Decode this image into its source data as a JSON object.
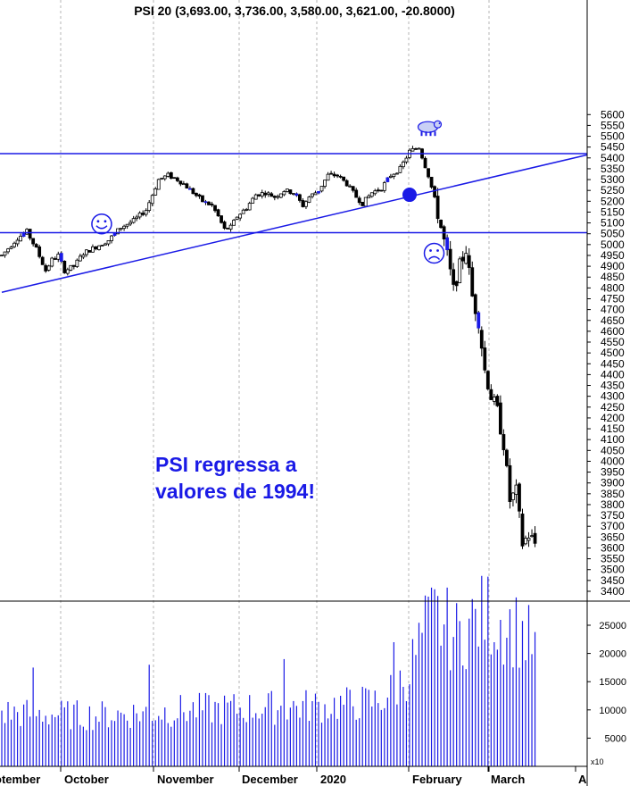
{
  "chart_data": {
    "type": "candlestick",
    "title": "PSI 20 (3,693.00, 3,736.00, 3,580.00, 3,621.00, -20.8000)",
    "price_axis": {
      "min": 3300,
      "max": 5650,
      "ticks": [
        3400,
        3450,
        3500,
        3550,
        3600,
        3650,
        3700,
        3750,
        3800,
        3850,
        3900,
        3950,
        4000,
        4050,
        4100,
        4150,
        4200,
        4250,
        4300,
        4350,
        4400,
        4450,
        4500,
        4550,
        4600,
        4650,
        4700,
        4750,
        4800,
        4850,
        4900,
        4950,
        5000,
        5050,
        5100,
        5150,
        5200,
        5250,
        5300,
        5350,
        5400,
        5450,
        5500,
        5550,
        5600
      ]
    },
    "volume_axis": {
      "min": 0,
      "max": 28000,
      "ticks": [
        5000,
        10000,
        15000,
        20000,
        25000
      ],
      "multiplier_label": "x10"
    },
    "x_labels": [
      "otember",
      "October",
      "November",
      "December",
      "2020",
      "February",
      "March",
      "A"
    ],
    "annotation": {
      "lines": [
        "PSI regressa a",
        "valores de 1994!"
      ]
    },
    "reference_lines": [
      {
        "type": "horizontal",
        "value": 5420
      },
      {
        "type": "horizontal",
        "value": 5055
      },
      {
        "type": "trend",
        "from": {
          "day": 0,
          "value": 4780
        },
        "to": {
          "day": 172,
          "value": 5414
        }
      }
    ],
    "markers": [
      {
        "kind": "smiley-icon",
        "day": 29,
        "value": 5120
      },
      {
        "kind": "frown-icon",
        "day": 135,
        "value": 4985
      },
      {
        "kind": "bear-icon",
        "day": 133,
        "value": 5555
      },
      {
        "kind": "dot",
        "day": 132,
        "value": 5230
      }
    ],
    "price_anchors": [
      [
        0,
        4950
      ],
      [
        5,
        5030
      ],
      [
        8,
        5060
      ],
      [
        11,
        4980
      ],
      [
        14,
        4880
      ],
      [
        16,
        4930
      ],
      [
        18,
        4950
      ],
      [
        20,
        4880
      ],
      [
        23,
        4900
      ],
      [
        26,
        4960
      ],
      [
        30,
        4990
      ],
      [
        34,
        5020
      ],
      [
        38,
        5080
      ],
      [
        42,
        5110
      ],
      [
        46,
        5160
      ],
      [
        48,
        5230
      ],
      [
        50,
        5300
      ],
      [
        53,
        5320
      ],
      [
        56,
        5300
      ],
      [
        58,
        5280
      ],
      [
        61,
        5240
      ],
      [
        64,
        5200
      ],
      [
        67,
        5180
      ],
      [
        69,
        5130
      ],
      [
        71,
        5070
      ],
      [
        73,
        5080
      ],
      [
        75,
        5130
      ],
      [
        78,
        5170
      ],
      [
        81,
        5230
      ],
      [
        84,
        5240
      ],
      [
        87,
        5220
      ],
      [
        90,
        5250
      ],
      [
        93,
        5240
      ],
      [
        96,
        5180
      ],
      [
        98,
        5220
      ],
      [
        101,
        5250
      ],
      [
        104,
        5320
      ],
      [
        107,
        5320
      ],
      [
        110,
        5280
      ],
      [
        113,
        5220
      ],
      [
        115,
        5190
      ],
      [
        118,
        5240
      ],
      [
        121,
        5260
      ],
      [
        124,
        5320
      ],
      [
        127,
        5350
      ],
      [
        130,
        5430
      ],
      [
        133,
        5450
      ],
      [
        136,
        5320
      ],
      [
        138,
        5210
      ],
      [
        140,
        5080
      ],
      [
        142,
        4950
      ],
      [
        144,
        4790
      ],
      [
        146,
        4900
      ],
      [
        148,
        4980
      ],
      [
        150,
        4760
      ],
      [
        152,
        4650
      ],
      [
        154,
        4420
      ],
      [
        156,
        4300
      ],
      [
        158,
        4230
      ],
      [
        160,
        4080
      ],
      [
        162,
        3820
      ],
      [
        164,
        3860
      ],
      [
        166,
        3620
      ],
      [
        168,
        3660
      ],
      [
        170,
        3621
      ]
    ],
    "volume_anchors": [
      [
        0,
        9500
      ],
      [
        30,
        9000
      ],
      [
        60,
        10000
      ],
      [
        90,
        10500
      ],
      [
        110,
        11000
      ],
      [
        120,
        11500
      ],
      [
        126,
        14000
      ],
      [
        130,
        17000
      ],
      [
        132,
        20000
      ],
      [
        135,
        24000
      ],
      [
        138,
        26500
      ],
      [
        141,
        25000
      ],
      [
        145,
        23000
      ],
      [
        150,
        25500
      ],
      [
        155,
        27000
      ],
      [
        160,
        25500
      ],
      [
        165,
        24000
      ],
      [
        170,
        21000
      ]
    ],
    "volume_spikes": [
      [
        10,
        17500
      ],
      [
        47,
        18000
      ],
      [
        90,
        19000
      ],
      [
        103,
        11000
      ],
      [
        125,
        22000
      ]
    ],
    "trading_days": 171
  }
}
